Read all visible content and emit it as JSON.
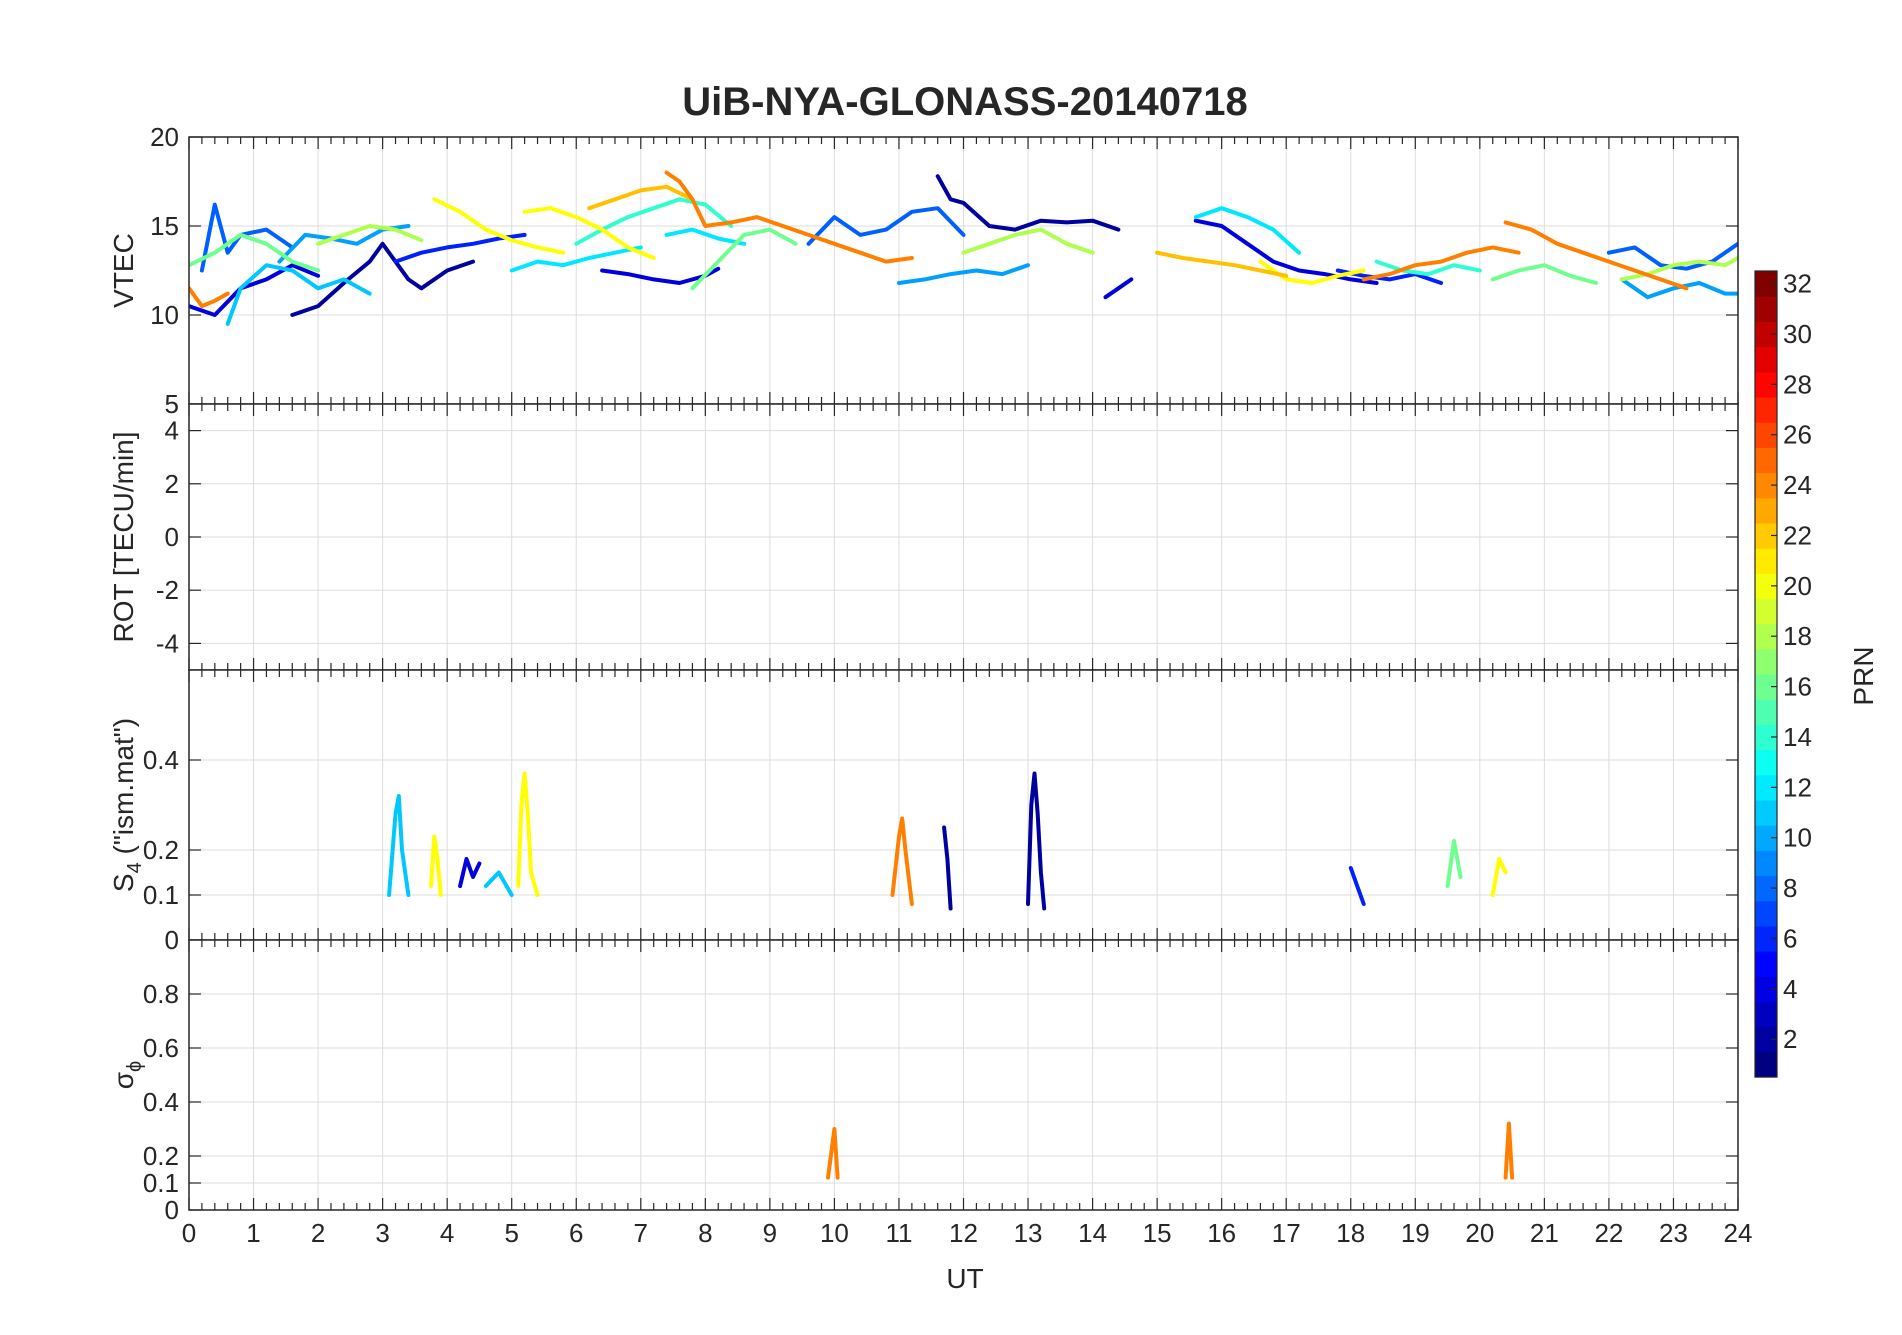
{
  "chart_data": {
    "title": "UiB-NYA-GLONASS-20140718",
    "type": "line",
    "xlabel": "UT",
    "xlim": [
      0,
      24
    ],
    "x_ticks": [
      "0",
      "1",
      "2",
      "3",
      "4",
      "5",
      "6",
      "7",
      "8",
      "9",
      "10",
      "11",
      "12",
      "13",
      "14",
      "15",
      "16",
      "17",
      "18",
      "19",
      "20",
      "21",
      "22",
      "23",
      "24"
    ],
    "grid": true,
    "panels": [
      {
        "name": "VTEC",
        "ylabel": "VTEC",
        "ylim": [
          5,
          20
        ],
        "y_ticks": [
          "5",
          "10",
          "15",
          "20"
        ],
        "y_tick_values": [
          5,
          10,
          15,
          20
        ]
      },
      {
        "name": "ROT",
        "ylabel": "ROT [TECU/min]",
        "ylim": [
          -5,
          5
        ],
        "y_ticks": [
          "-4",
          "-2",
          "0",
          "2",
          "4"
        ],
        "y_tick_values": [
          -4,
          -2,
          0,
          2,
          4
        ]
      },
      {
        "name": "S4",
        "ylabel_main": "S",
        "ylabel_sub": "4",
        "ylabel_rest": " (\"ism.mat\")",
        "ylim": [
          0,
          0.6
        ],
        "y_ticks": [
          "0",
          "0.1",
          "0.2",
          "0.4"
        ],
        "y_tick_values": [
          0,
          0.1,
          0.2,
          0.4
        ]
      },
      {
        "name": "sigma_phi",
        "ylabel_main": "σ",
        "ylabel_sub": "ϕ",
        "ylim": [
          0,
          1
        ],
        "y_ticks": [
          "0",
          "0.1",
          "0.2",
          "0.4",
          "0.6",
          "0.8"
        ],
        "y_tick_values": [
          0,
          0.1,
          0.2,
          0.4,
          0.6,
          0.8
        ]
      }
    ],
    "colorbar": {
      "label": "PRN",
      "colormap": "jet",
      "range": [
        1,
        32
      ],
      "ticks": [
        "2",
        "4",
        "6",
        "8",
        "10",
        "12",
        "14",
        "16",
        "18",
        "20",
        "22",
        "24",
        "26",
        "28",
        "30",
        "32"
      ],
      "tick_values": [
        2,
        4,
        6,
        8,
        10,
        12,
        14,
        16,
        18,
        20,
        22,
        24,
        26,
        28,
        30,
        32
      ]
    },
    "series": [
      {
        "prn": 1,
        "color": "#00009f",
        "tracks": [
          {
            "panel": "VTEC",
            "x": [
              1.6,
              2.0,
              2.4,
              2.8,
              3.0,
              3.4,
              3.6,
              4.0,
              4.4
            ],
            "y": [
              10.0,
              10.5,
              11.8,
              13.0,
              14.0,
              12.0,
              11.5,
              12.5,
              13.0
            ]
          },
          {
            "panel": "VTEC",
            "x": [
              11.6,
              11.8,
              12.0,
              12.4,
              12.8,
              13.2,
              13.6,
              14.0,
              14.4
            ],
            "y": [
              17.8,
              16.5,
              16.3,
              15.0,
              14.8,
              15.3,
              15.2,
              15.3,
              14.8
            ]
          },
          {
            "panel": "S4",
            "x": [
              11.7,
              11.75,
              11.8
            ],
            "y": [
              0.25,
              0.18,
              0.07
            ]
          },
          {
            "panel": "S4",
            "x": [
              13.0,
              13.05,
              13.1,
              13.15,
              13.2,
              13.25
            ],
            "y": [
              0.08,
              0.3,
              0.37,
              0.28,
              0.15,
              0.07
            ]
          }
        ]
      },
      {
        "prn": 3,
        "color": "#0000df",
        "tracks": [
          {
            "panel": "VTEC",
            "x": [
              0.0,
              0.4,
              0.8,
              1.2,
              1.6,
              2.0
            ],
            "y": [
              10.5,
              10.0,
              11.5,
              12.0,
              12.8,
              12.2
            ]
          },
          {
            "panel": "VTEC",
            "x": [
              6.4,
              6.8,
              7.2,
              7.6,
              8.0,
              8.2
            ],
            "y": [
              12.5,
              12.3,
              12.0,
              11.8,
              12.2,
              12.6
            ]
          },
          {
            "panel": "VTEC",
            "x": [
              14.2,
              14.4,
              14.6
            ],
            "y": [
              11.0,
              11.5,
              12.0
            ]
          },
          {
            "panel": "VTEC",
            "x": [
              15.6,
              16.0,
              16.4,
              16.8,
              17.2,
              17.6,
              18.0,
              18.4
            ],
            "y": [
              15.3,
              15.0,
              14.0,
              13.0,
              12.5,
              12.3,
              12.0,
              11.8
            ]
          },
          {
            "panel": "S4",
            "x": [
              4.2,
              4.3,
              4.4,
              4.5
            ],
            "y": [
              0.12,
              0.18,
              0.14,
              0.17
            ]
          }
        ]
      },
      {
        "prn": 5,
        "color": "#0020ff",
        "tracks": [
          {
            "panel": "VTEC",
            "x": [
              3.2,
              3.6,
              4.0,
              4.4,
              4.8,
              5.2
            ],
            "y": [
              13.0,
              13.5,
              13.8,
              14.0,
              14.3,
              14.5
            ]
          },
          {
            "panel": "VTEC",
            "x": [
              17.8,
              18.2,
              18.6,
              19.0,
              19.4
            ],
            "y": [
              12.5,
              12.2,
              12.0,
              12.3,
              11.8
            ]
          },
          {
            "panel": "S4",
            "x": [
              18.0,
              18.1,
              18.2
            ],
            "y": [
              0.16,
              0.12,
              0.08
            ]
          }
        ]
      },
      {
        "prn": 7,
        "color": "#0060ff",
        "tracks": [
          {
            "panel": "VTEC",
            "x": [
              0.2,
              0.4,
              0.6,
              0.8,
              1.2,
              1.6
            ],
            "y": [
              12.5,
              16.2,
              13.5,
              14.5,
              14.8,
              13.8
            ]
          },
          {
            "panel": "VTEC",
            "x": [
              9.6,
              10.0,
              10.4,
              10.8,
              11.2,
              11.6,
              12.0
            ],
            "y": [
              14.0,
              15.5,
              14.5,
              14.8,
              15.8,
              16.0,
              14.5
            ]
          },
          {
            "panel": "VTEC",
            "x": [
              22.0,
              22.4,
              22.8,
              23.2,
              23.6,
              24.0
            ],
            "y": [
              13.5,
              13.8,
              12.8,
              12.6,
              13.0,
              14.0
            ]
          }
        ]
      },
      {
        "prn": 9,
        "color": "#00a0ff",
        "tracks": [
          {
            "panel": "VTEC",
            "x": [
              1.4,
              1.8,
              2.2,
              2.6,
              3.0,
              3.4
            ],
            "y": [
              13.0,
              14.5,
              14.3,
              14.0,
              14.8,
              15.0
            ]
          },
          {
            "panel": "VTEC",
            "x": [
              11.0,
              11.4,
              11.8,
              12.2,
              12.6,
              13.0
            ],
            "y": [
              11.8,
              12.0,
              12.3,
              12.5,
              12.3,
              12.8
            ]
          },
          {
            "panel": "VTEC",
            "x": [
              22.2,
              22.6,
              23.0,
              23.4,
              23.8,
              24.0
            ],
            "y": [
              12.0,
              11.0,
              11.5,
              11.8,
              11.2,
              11.2
            ]
          }
        ]
      },
      {
        "prn": 11,
        "color": "#00c8ff",
        "tracks": [
          {
            "panel": "VTEC",
            "x": [
              0.6,
              0.8,
              1.2,
              1.6,
              2.0,
              2.4,
              2.8
            ],
            "y": [
              9.5,
              11.5,
              12.8,
              12.5,
              11.5,
              12.0,
              11.2
            ]
          },
          {
            "panel": "S4",
            "x": [
              3.1,
              3.2,
              3.25,
              3.3,
              3.4
            ],
            "y": [
              0.1,
              0.28,
              0.32,
              0.2,
              0.1
            ]
          },
          {
            "panel": "S4",
            "x": [
              4.6,
              4.8,
              5.0
            ],
            "y": [
              0.12,
              0.15,
              0.1
            ]
          }
        ]
      },
      {
        "prn": 12,
        "color": "#00e8ff",
        "tracks": [
          {
            "panel": "VTEC",
            "x": [
              5.0,
              5.4,
              5.8,
              6.2,
              6.6,
              7.0
            ],
            "y": [
              12.5,
              13.0,
              12.8,
              13.2,
              13.5,
              13.8
            ]
          },
          {
            "panel": "VTEC",
            "x": [
              7.4,
              7.8,
              8.2,
              8.6
            ],
            "y": [
              14.5,
              14.8,
              14.3,
              14.0
            ]
          },
          {
            "panel": "VTEC",
            "x": [
              15.6,
              16.0,
              16.4,
              16.8,
              17.2
            ],
            "y": [
              15.5,
              16.0,
              15.5,
              14.8,
              13.5
            ]
          }
        ]
      },
      {
        "prn": 14,
        "color": "#2fffcf",
        "tracks": [
          {
            "panel": "VTEC",
            "x": [
              6.0,
              6.4,
              6.8,
              7.2,
              7.6,
              8.0,
              8.4
            ],
            "y": [
              14.0,
              14.8,
              15.5,
              16.0,
              16.5,
              16.2,
              15.0
            ]
          },
          {
            "panel": "VTEC",
            "x": [
              18.4,
              18.8,
              19.2,
              19.6,
              20.0
            ],
            "y": [
              13.0,
              12.5,
              12.3,
              12.8,
              12.5
            ]
          }
        ]
      },
      {
        "prn": 16,
        "color": "#6fff8f",
        "tracks": [
          {
            "panel": "VTEC",
            "x": [
              0.0,
              0.4,
              0.8,
              1.2,
              1.6,
              2.0
            ],
            "y": [
              12.8,
              13.5,
              14.5,
              14.0,
              13.0,
              12.5
            ]
          },
          {
            "panel": "VTEC",
            "x": [
              7.8,
              8.2,
              8.6,
              9.0,
              9.4
            ],
            "y": [
              11.5,
              13.0,
              14.5,
              14.8,
              14.0
            ]
          },
          {
            "panel": "VTEC",
            "x": [
              20.2,
              20.6,
              21.0,
              21.4,
              21.8
            ],
            "y": [
              12.0,
              12.5,
              12.8,
              12.2,
              11.8
            ]
          },
          {
            "panel": "S4",
            "x": [
              19.5,
              19.6,
              19.7
            ],
            "y": [
              0.12,
              0.22,
              0.14
            ]
          }
        ]
      },
      {
        "prn": 18,
        "color": "#afff4f",
        "tracks": [
          {
            "panel": "VTEC",
            "x": [
              2.0,
              2.4,
              2.8,
              3.2,
              3.6
            ],
            "y": [
              14.0,
              14.5,
              15.0,
              14.8,
              14.2
            ]
          },
          {
            "panel": "VTEC",
            "x": [
              12.0,
              12.4,
              12.8,
              13.2,
              13.6,
              14.0
            ],
            "y": [
              13.5,
              14.0,
              14.5,
              14.8,
              14.0,
              13.5
            ]
          },
          {
            "panel": "VTEC",
            "x": [
              22.2,
              22.6,
              23.0,
              23.4,
              23.8,
              24.0
            ],
            "y": [
              12.0,
              12.3,
              12.8,
              13.0,
              12.8,
              13.2
            ]
          }
        ]
      },
      {
        "prn": 20,
        "color": "#ffff00",
        "tracks": [
          {
            "panel": "VTEC",
            "x": [
              3.8,
              4.2,
              4.6,
              5.0,
              5.4,
              5.8
            ],
            "y": [
              16.5,
              15.8,
              14.8,
              14.2,
              13.8,
              13.5
            ]
          },
          {
            "panel": "VTEC",
            "x": [
              5.2,
              5.6,
              6.0,
              6.4,
              6.8,
              7.2
            ],
            "y": [
              15.8,
              16.0,
              15.5,
              14.8,
              13.8,
              13.2
            ]
          },
          {
            "panel": "VTEC",
            "x": [
              16.6,
              17.0,
              17.4,
              17.8,
              18.2
            ],
            "y": [
              13.0,
              12.0,
              11.8,
              12.2,
              12.5
            ]
          },
          {
            "panel": "S4",
            "x": [
              3.75,
              3.8,
              3.85,
              3.9
            ],
            "y": [
              0.12,
              0.23,
              0.18,
              0.1
            ]
          },
          {
            "panel": "S4",
            "x": [
              5.1,
              5.15,
              5.2,
              5.25,
              5.3,
              5.4
            ],
            "y": [
              0.12,
              0.3,
              0.37,
              0.28,
              0.15,
              0.1
            ]
          },
          {
            "panel": "S4",
            "x": [
              20.2,
              20.3,
              20.4
            ],
            "y": [
              0.1,
              0.18,
              0.15
            ]
          }
        ]
      },
      {
        "prn": 22,
        "color": "#ffc000",
        "tracks": [
          {
            "panel": "VTEC",
            "x": [
              6.2,
              6.6,
              7.0,
              7.4,
              7.8
            ],
            "y": [
              16.0,
              16.5,
              17.0,
              17.2,
              16.5
            ]
          },
          {
            "panel": "VTEC",
            "x": [
              15.0,
              15.4,
              15.8,
              16.2,
              16.6,
              17.0
            ],
            "y": [
              13.5,
              13.2,
              13.0,
              12.8,
              12.5,
              12.2
            ]
          }
        ]
      },
      {
        "prn": 24,
        "color": "#ff8000",
        "tracks": [
          {
            "panel": "VTEC",
            "x": [
              0.0,
              0.2,
              0.4,
              0.6
            ],
            "y": [
              11.5,
              10.5,
              10.8,
              11.2
            ]
          },
          {
            "panel": "VTEC",
            "x": [
              7.4,
              7.6,
              7.8,
              8.0,
              8.4,
              8.8,
              9.2,
              9.6,
              10.0,
              10.4,
              10.8,
              11.2
            ],
            "y": [
              18.0,
              17.5,
              16.5,
              15.0,
              15.2,
              15.5,
              15.0,
              14.5,
              14.0,
              13.5,
              13.0,
              13.2
            ]
          },
          {
            "panel": "VTEC",
            "x": [
              18.2,
              18.6,
              19.0,
              19.4,
              19.8,
              20.2,
              20.6
            ],
            "y": [
              12.0,
              12.3,
              12.8,
              13.0,
              13.5,
              13.8,
              13.5
            ]
          },
          {
            "panel": "VTEC",
            "x": [
              20.4,
              20.8,
              21.2,
              21.6,
              22.0,
              22.4,
              22.8,
              23.2
            ],
            "y": [
              15.2,
              14.8,
              14.0,
              13.5,
              13.0,
              12.5,
              12.0,
              11.5
            ]
          },
          {
            "panel": "S4",
            "x": [
              10.9,
              11.0,
              11.05,
              11.1,
              11.2
            ],
            "y": [
              0.1,
              0.23,
              0.27,
              0.2,
              0.08
            ]
          },
          {
            "panel": "sigma_phi",
            "x": [
              9.9,
              10.0,
              10.05
            ],
            "y": [
              0.12,
              0.3,
              0.12
            ]
          },
          {
            "panel": "sigma_phi",
            "x": [
              20.4,
              20.45,
              20.5
            ],
            "y": [
              0.12,
              0.32,
              0.12
            ]
          }
        ]
      }
    ]
  }
}
